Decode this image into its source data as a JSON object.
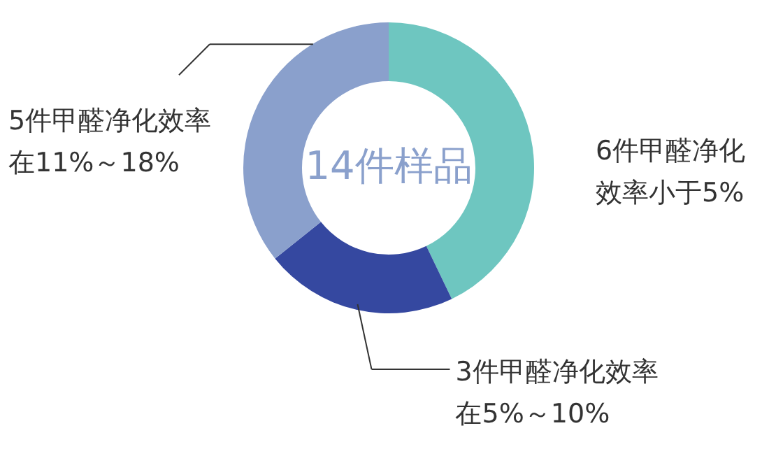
{
  "chart_data": {
    "type": "donut",
    "categories": [
      "6件甲醛净化效率小于5%",
      "3件甲醛净化效率在5%～10%",
      "5件甲醛净化效率在11%～18%"
    ],
    "values": [
      6,
      3,
      5
    ],
    "colors": [
      "#6ec6c0",
      "#3548a0",
      "#8aa0cc"
    ],
    "annotations": [
      "14件样品"
    ]
  }
}
